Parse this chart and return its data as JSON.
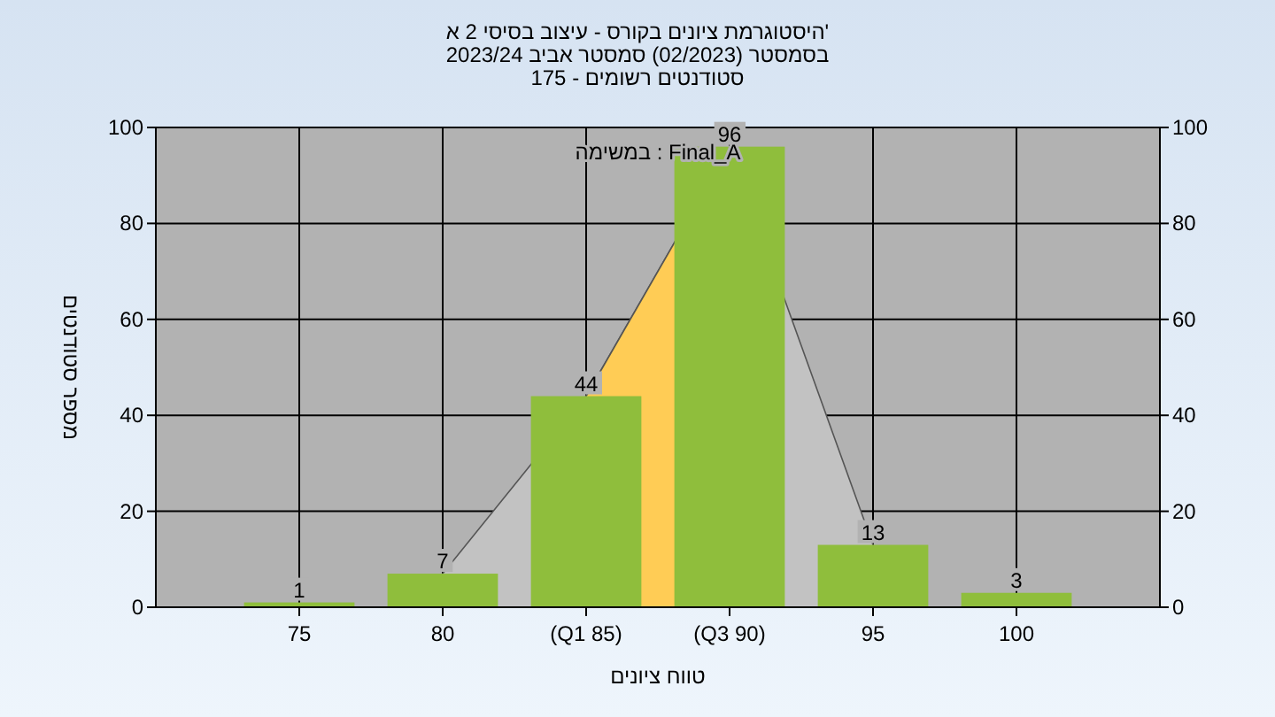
{
  "chart_data": {
    "type": "bar",
    "title": "היסטוגרמת ציונים בקורס - עיצוב בסיסי 2 א'",
    "subtitle": "בסמסטר (02/2023) סמסטר אביב 2023/24",
    "annotations": [
      "סטודנטים רשומים - 175",
      "במשימה : Final_A"
    ],
    "xlabel": "טווח ציונים",
    "ylabel": "מספר סטודנטים",
    "categories": [
      "75",
      "80",
      "(Q1 85)",
      "(Q3 90)",
      "95",
      "100"
    ],
    "series": [
      {
        "type": "area",
        "color": "#c2c2c2",
        "values": [
          null,
          7,
          44,
          96,
          13,
          null
        ]
      },
      {
        "type": "area",
        "color": "#ffcc55",
        "values": [
          null,
          null,
          44,
          96,
          null,
          null
        ]
      },
      {
        "color": "#8fbe3c",
        "values": [
          1,
          7,
          44,
          96,
          13,
          3
        ],
        "value_labels": [
          "1",
          "7",
          "44",
          "96",
          "13",
          "3"
        ]
      }
    ],
    "ylim": [
      0,
      100
    ],
    "yticks": [
      0,
      20,
      40,
      60,
      80,
      100
    ],
    "y2lim": [
      0,
      100
    ],
    "y2ticks": [
      0,
      20,
      40,
      60,
      80,
      100
    ],
    "grid": true
  }
}
